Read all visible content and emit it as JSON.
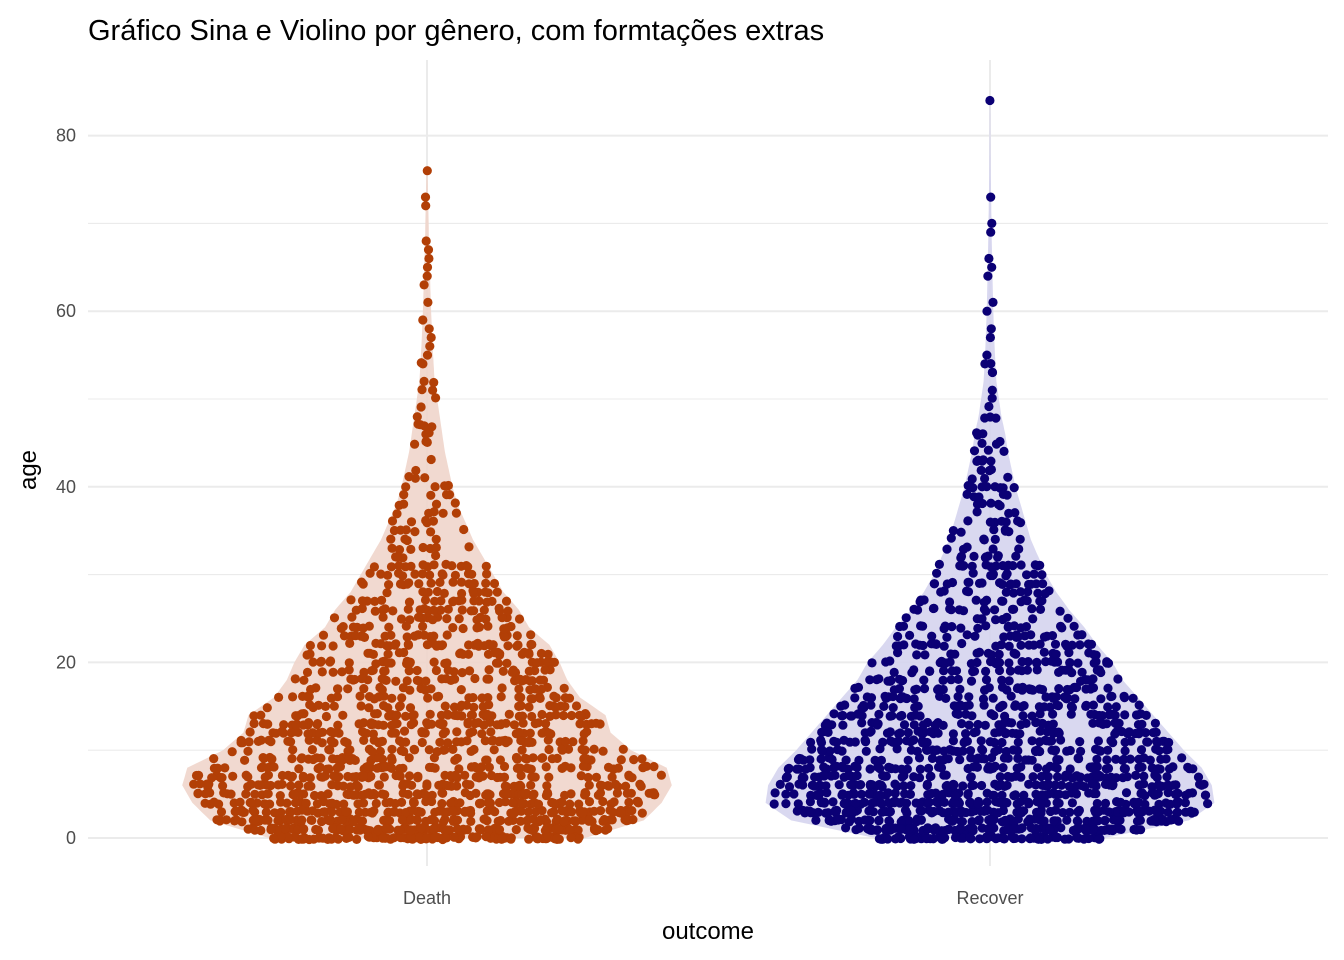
{
  "chart_data": {
    "type": "scatter",
    "title": "Gráfico Sina e Violino por gênero, com formtações extras",
    "xlabel": "outcome",
    "ylabel": "age",
    "categories": [
      "Death",
      "Recover"
    ],
    "ylim": [
      -3,
      88
    ],
    "y_ticks": [
      "0",
      "20",
      "40",
      "60",
      "80"
    ],
    "grid": true,
    "legend": "none",
    "series": [
      {
        "category": "Death",
        "color": "#b23f06",
        "violin_color": "#f0d5cb",
        "min": 0,
        "max": 76,
        "density": [
          [
            0,
            0.62
          ],
          [
            2,
            0.85
          ],
          [
            4,
            0.92
          ],
          [
            6,
            0.96
          ],
          [
            8,
            0.94
          ],
          [
            10,
            0.8
          ],
          [
            12,
            0.72
          ],
          [
            14,
            0.7
          ],
          [
            16,
            0.6
          ],
          [
            18,
            0.55
          ],
          [
            20,
            0.52
          ],
          [
            22,
            0.48
          ],
          [
            24,
            0.4
          ],
          [
            26,
            0.36
          ],
          [
            28,
            0.3
          ],
          [
            30,
            0.26
          ],
          [
            32,
            0.22
          ],
          [
            34,
            0.18
          ],
          [
            36,
            0.15
          ],
          [
            38,
            0.12
          ],
          [
            40,
            0.1
          ],
          [
            42,
            0.085
          ],
          [
            44,
            0.07
          ],
          [
            46,
            0.06
          ],
          [
            48,
            0.05
          ],
          [
            50,
            0.04
          ],
          [
            52,
            0.03
          ],
          [
            56,
            0.022
          ],
          [
            60,
            0.016
          ],
          [
            64,
            0.012
          ],
          [
            68,
            0.008
          ],
          [
            72,
            0.005
          ],
          [
            76,
            0.002
          ]
        ],
        "outliers": [
          76,
          73,
          72,
          68,
          67,
          66,
          65,
          64,
          63,
          61,
          59,
          58,
          57,
          56,
          55,
          54
        ]
      },
      {
        "category": "Recover",
        "color": "#0b0075",
        "violin_color": "#d5d4ee",
        "min": 0,
        "max": 84,
        "density": [
          [
            0,
            0.45
          ],
          [
            2,
            0.78
          ],
          [
            4,
            0.88
          ],
          [
            6,
            0.87
          ],
          [
            8,
            0.83
          ],
          [
            10,
            0.76
          ],
          [
            12,
            0.7
          ],
          [
            14,
            0.64
          ],
          [
            16,
            0.58
          ],
          [
            18,
            0.52
          ],
          [
            20,
            0.48
          ],
          [
            22,
            0.42
          ],
          [
            24,
            0.37
          ],
          [
            26,
            0.31
          ],
          [
            28,
            0.26
          ],
          [
            30,
            0.22
          ],
          [
            32,
            0.19
          ],
          [
            34,
            0.16
          ],
          [
            36,
            0.14
          ],
          [
            38,
            0.12
          ],
          [
            40,
            0.1
          ],
          [
            42,
            0.085
          ],
          [
            44,
            0.07
          ],
          [
            46,
            0.06
          ],
          [
            48,
            0.045
          ],
          [
            50,
            0.035
          ],
          [
            52,
            0.025
          ],
          [
            56,
            0.018
          ],
          [
            60,
            0.013
          ],
          [
            64,
            0.01
          ],
          [
            68,
            0.007
          ],
          [
            72,
            0.005
          ],
          [
            76,
            0.003
          ],
          [
            80,
            0.002
          ],
          [
            84,
            0.001
          ]
        ],
        "outliers": [
          84,
          73,
          70,
          69,
          66,
          65,
          64,
          61,
          60,
          58,
          57,
          55,
          54
        ]
      }
    ],
    "points_per_group": 1500
  }
}
